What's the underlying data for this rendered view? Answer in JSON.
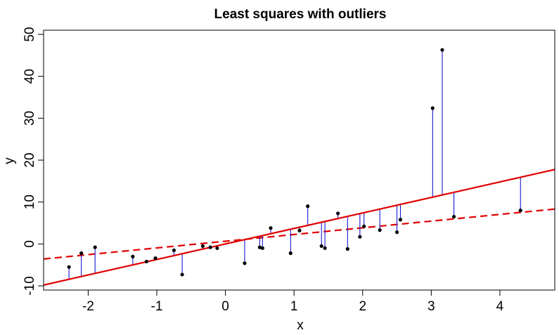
{
  "chart_data": {
    "type": "scatter",
    "title": "Least squares with outliers",
    "xlabel": "x",
    "ylabel": "y",
    "xlim": [
      -2.65,
      4.8
    ],
    "ylim": [
      -11,
      51
    ],
    "x_ticks": [
      -2,
      -1,
      0,
      1,
      2,
      3,
      4
    ],
    "x_tick_labels": [
      "-2",
      "-1",
      "0",
      "1",
      "2",
      "3",
      "4"
    ],
    "y_ticks": [
      -10,
      0,
      10,
      20,
      30,
      40,
      50
    ],
    "y_tick_labels": [
      "-10",
      "0",
      "10",
      "20",
      "30",
      "40",
      "50"
    ],
    "grid": false,
    "points": [
      {
        "x": -2.28,
        "y": -5.5
      },
      {
        "x": -2.1,
        "y": -2.2
      },
      {
        "x": -1.9,
        "y": -0.8
      },
      {
        "x": -1.35,
        "y": -3.0
      },
      {
        "x": -1.15,
        "y": -4.2
      },
      {
        "x": -1.02,
        "y": -3.4
      },
      {
        "x": -0.75,
        "y": -1.5
      },
      {
        "x": -0.63,
        "y": -7.3
      },
      {
        "x": -0.33,
        "y": -0.5
      },
      {
        "x": -0.22,
        "y": -0.8
      },
      {
        "x": -0.12,
        "y": -1.0
      },
      {
        "x": 0.28,
        "y": -4.6
      },
      {
        "x": 0.5,
        "y": -0.8
      },
      {
        "x": 0.54,
        "y": -1.0
      },
      {
        "x": 0.66,
        "y": 3.8
      },
      {
        "x": 0.95,
        "y": -2.2
      },
      {
        "x": 1.08,
        "y": 3.2
      },
      {
        "x": 1.2,
        "y": 9.0
      },
      {
        "x": 1.4,
        "y": -0.5
      },
      {
        "x": 1.45,
        "y": -1.0
      },
      {
        "x": 1.64,
        "y": 7.3
      },
      {
        "x": 1.78,
        "y": -1.2
      },
      {
        "x": 1.96,
        "y": 1.7
      },
      {
        "x": 2.02,
        "y": 4.2
      },
      {
        "x": 2.25,
        "y": 3.3
      },
      {
        "x": 2.5,
        "y": 2.8
      },
      {
        "x": 2.55,
        "y": 5.8
      },
      {
        "x": 3.02,
        "y": 32.4
      },
      {
        "x": 3.16,
        "y": 46.3
      },
      {
        "x": 3.33,
        "y": 6.5
      },
      {
        "x": 4.3,
        "y": 8.0
      }
    ],
    "fits": [
      {
        "style": "solid",
        "color": "#e00000",
        "type": "linear",
        "intercept": 0.0,
        "slope": 3.7
      },
      {
        "style": "dashed",
        "color": "#e00000",
        "type": "linear",
        "intercept": 0.65,
        "slope": 1.6
      }
    ],
    "residual_color": "#0000cc",
    "point_color": "#000000"
  }
}
